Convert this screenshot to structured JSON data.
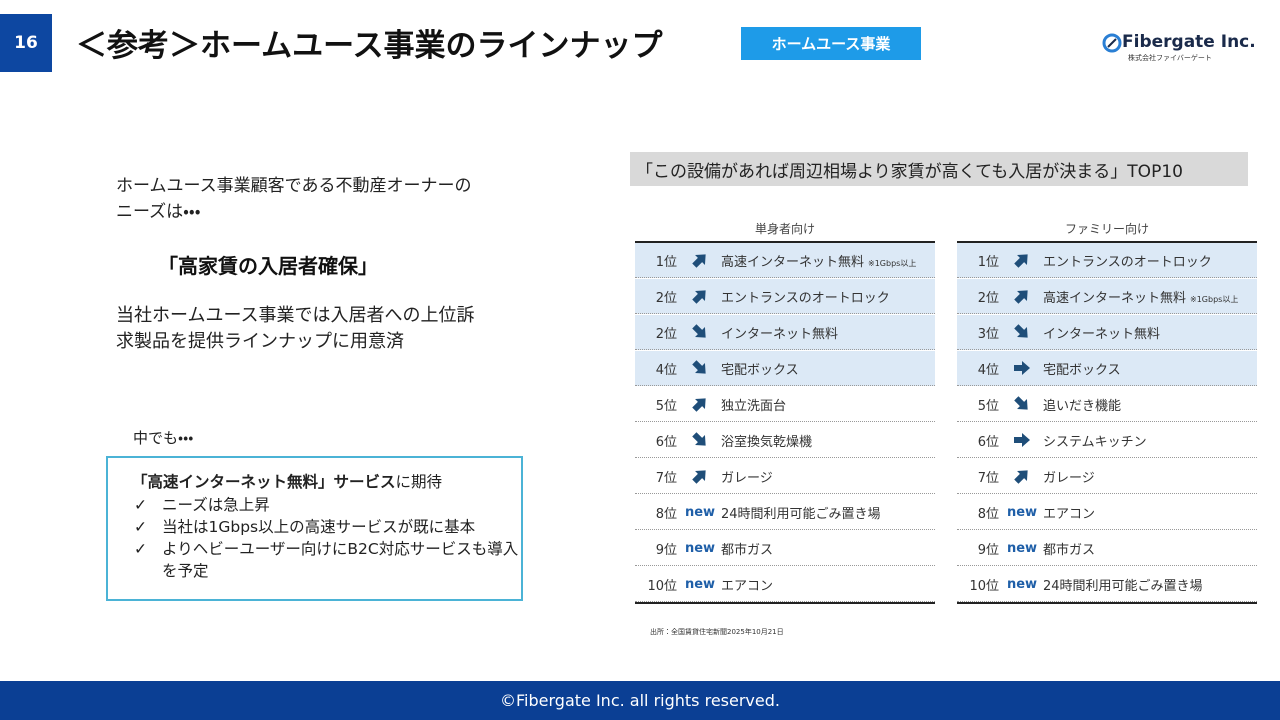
{
  "header": {
    "page_number": "16",
    "title": "＜参考＞ホームユース事業のラインナップ",
    "tag": "ホームユース事業",
    "logo": "Fibergate Inc.",
    "logo_sub": "株式会社ファイバーゲート"
  },
  "left": {
    "intro": [
      "ホームユース事業顧客である不動産オーナーの",
      "ニーズは・・・"
    ],
    "highlight": "「高家賃の入居者確保」",
    "statement": [
      "当社ホームユース事業では入居者への上位訴",
      "求製品を提供ラインナップに用意済"
    ],
    "lead": "中でも・・・",
    "box": {
      "heading_bold": "「高速インターネット無料」サービス",
      "heading_rest": "に期待",
      "check": "✓",
      "bullets": [
        "ニーズは急上昇",
        "当社は1Gbps以上の高速サービスが既に基本",
        "よりヘビーユーザー向けにB2C対応サービスも導入を予定"
      ]
    }
  },
  "ranking": {
    "title": "「この設備があれば周辺相場より家賃が高くても入居が決まる」TOP10",
    "highlight_rows": 4,
    "tables": [
      {
        "heading": "単身者向け",
        "rows": [
          {
            "rank": "1位",
            "trend": "up",
            "item": "高速インターネット無料",
            "note": "※1Gbps以上"
          },
          {
            "rank": "2位",
            "trend": "up",
            "item": "エントランスのオートロック"
          },
          {
            "rank": "2位",
            "trend": "down",
            "item": "インターネット無料"
          },
          {
            "rank": "4位",
            "trend": "down",
            "item": "宅配ボックス"
          },
          {
            "rank": "5位",
            "trend": "up",
            "item": "独立洗面台"
          },
          {
            "rank": "6位",
            "trend": "down",
            "item": "浴室換気乾燥機"
          },
          {
            "rank": "7位",
            "trend": "up",
            "item": "ガレージ"
          },
          {
            "rank": "8位",
            "trend": "new",
            "item": "24時間利用可能ごみ置き場"
          },
          {
            "rank": "9位",
            "trend": "new",
            "item": "都市ガス"
          },
          {
            "rank": "10位",
            "trend": "new",
            "item": "エアコン"
          }
        ]
      },
      {
        "heading": "ファミリー向け",
        "rows": [
          {
            "rank": "1位",
            "trend": "up",
            "item": "エントランスのオートロック"
          },
          {
            "rank": "2位",
            "trend": "up",
            "item": "高速インターネット無料",
            "note": "※1Gbps以上"
          },
          {
            "rank": "3位",
            "trend": "down",
            "item": "インターネット無料"
          },
          {
            "rank": "4位",
            "trend": "right",
            "item": "宅配ボックス"
          },
          {
            "rank": "5位",
            "trend": "down",
            "item": "追いだき機能"
          },
          {
            "rank": "6位",
            "trend": "right",
            "item": "システムキッチン"
          },
          {
            "rank": "7位",
            "trend": "up",
            "item": "ガレージ"
          },
          {
            "rank": "8位",
            "trend": "new",
            "item": "エアコン"
          },
          {
            "rank": "9位",
            "trend": "new",
            "item": "都市ガス"
          },
          {
            "rank": "10位",
            "trend": "new",
            "item": "24時間利用可能ごみ置き場"
          }
        ]
      }
    ],
    "source": "出所：全国賃貸住宅新聞2025年10月21日"
  },
  "footer": {
    "copyright": "©Fibergate Inc. all rights reserved."
  }
}
